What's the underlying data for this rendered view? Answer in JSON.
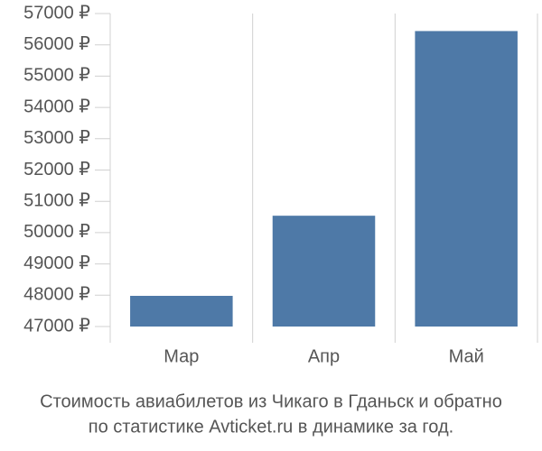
{
  "chart_data": {
    "type": "bar",
    "title": [
      "Стоимость авиабилетов из Чикаго в Гданьск и обратно",
      "по статистике Avticket.ru в динамике за год."
    ],
    "categories": [
      "Мар",
      "Апр",
      "Май"
    ],
    "values": [
      47980,
      50540,
      56440
    ],
    "color": "#4e79a7",
    "ylim": [
      47000,
      57000
    ],
    "yticks": [
      {
        "value": 47000,
        "label": "47000 ₽"
      },
      {
        "value": 48000,
        "label": "48000 ₽"
      },
      {
        "value": 49000,
        "label": "49000 ₽"
      },
      {
        "value": 50000,
        "label": "50000 ₽"
      },
      {
        "value": 51000,
        "label": "51000 ₽"
      },
      {
        "value": 52000,
        "label": "52000 ₽"
      },
      {
        "value": 53000,
        "label": "53000 ₽"
      },
      {
        "value": 54000,
        "label": "54000 ₽"
      },
      {
        "value": 55000,
        "label": "55000 ₽"
      },
      {
        "value": 56000,
        "label": "56000 ₽"
      },
      {
        "value": 57000,
        "label": "57000 ₽"
      }
    ]
  }
}
